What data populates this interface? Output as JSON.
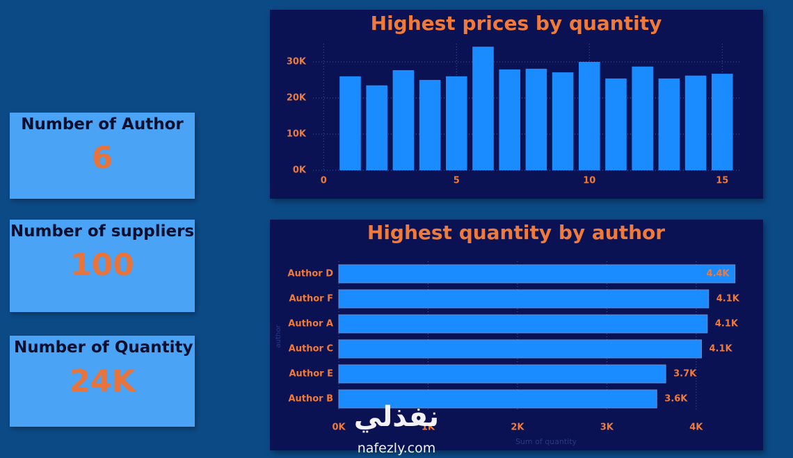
{
  "cards": [
    {
      "title": "Number of Author",
      "value": 6
    },
    {
      "title": "Number of suppliers",
      "value": 100
    },
    {
      "title": "Number of Quantity",
      "value": "24K"
    }
  ],
  "chart_data": [
    {
      "type": "bar",
      "title": "Highest prices by quantity",
      "color": "#1a8cff",
      "grid": true,
      "x": [
        1,
        2,
        3,
        4,
        5,
        6,
        7,
        8,
        9,
        10,
        11,
        12,
        13,
        14,
        15
      ],
      "values": [
        26000,
        23500,
        27700,
        25000,
        26000,
        34200,
        27900,
        28100,
        27100,
        30000,
        25400,
        28700,
        25400,
        26200,
        26700
      ],
      "xlim": [
        -0.4,
        15.7
      ],
      "xticks": [
        0,
        5,
        10,
        15
      ],
      "ylim": [
        0,
        35000
      ],
      "yticks": [
        {
          "value": 0,
          "label": "0K"
        },
        {
          "value": 10000,
          "label": "10K"
        },
        {
          "value": 20000,
          "label": "20K"
        },
        {
          "value": 30000,
          "label": "30K"
        }
      ]
    },
    {
      "type": "hbar",
      "title": "Highest quantity by author",
      "color": "#1a8cff",
      "grid": true,
      "x_label": "Sum of quantity",
      "y_label": "author",
      "categories": [
        "Author D",
        "Author F",
        "Author A",
        "Author C",
        "Author E",
        "Author B"
      ],
      "values": [
        4435,
        4140,
        4125,
        4060,
        3660,
        3560
      ],
      "value_labels": [
        "4.4K",
        "4.1K",
        "4.1K",
        "4.1K",
        "3.7K",
        "3.6K"
      ],
      "xlim": [
        0,
        4500
      ],
      "xticks": [
        {
          "value": 0,
          "label": "0K"
        },
        {
          "value": 1000,
          "label": "1K"
        },
        {
          "value": 2000,
          "label": "2K"
        },
        {
          "value": 3000,
          "label": "3K"
        },
        {
          "value": 4000,
          "label": "4K"
        }
      ]
    }
  ],
  "watermark": {
    "logo": "نفذلي",
    "site": "nafezly.com"
  }
}
